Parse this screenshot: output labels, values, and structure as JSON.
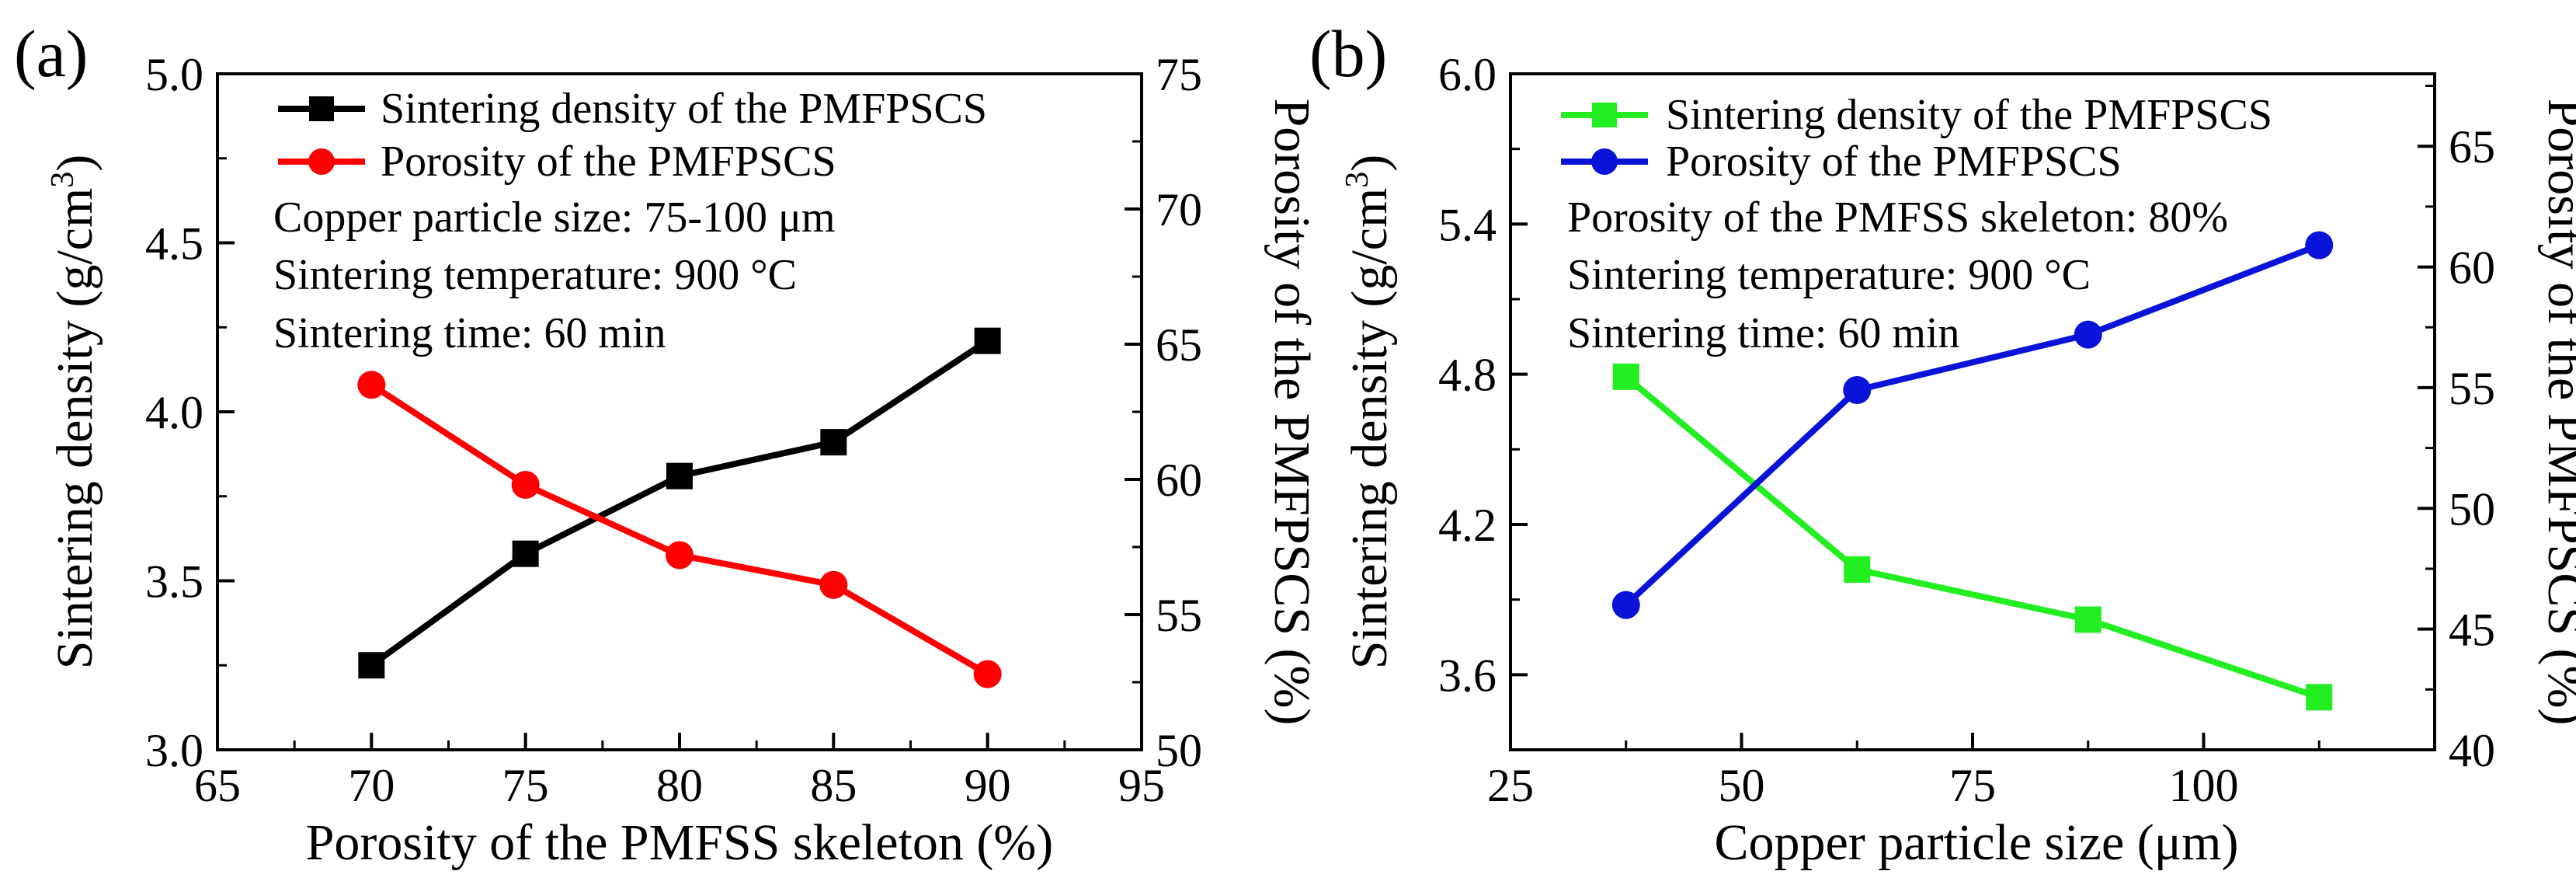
{
  "chart_data": [
    {
      "type": "line",
      "panel_label": "(a)",
      "xlabel": "Porosity of the PMFSS skeleton (%)",
      "ylabel": "Sintering density (g/cm",
      "ylabel_sup": "3",
      "ylabel_close": ")",
      "y2label": "Porosity of the PMFPSCS (%)",
      "xlim": [
        65,
        95
      ],
      "ylim": [
        3.0,
        5.0
      ],
      "y2lim": [
        50,
        75
      ],
      "xticks": [
        "65",
        "70",
        "75",
        "80",
        "85",
        "90",
        "95"
      ],
      "yticks": [
        "3.0",
        "3.5",
        "4.0",
        "4.5",
        "5.0"
      ],
      "y2ticks": [
        "50",
        "55",
        "60",
        "65",
        "70",
        "75"
      ],
      "x": [
        70,
        75,
        80,
        85,
        90
      ],
      "series": [
        {
          "name": "Sintering density of the PMFPSCS",
          "axis": "left",
          "marker": "square",
          "color": "#000000",
          "values": [
            3.25,
            3.58,
            3.81,
            3.91,
            4.21
          ]
        },
        {
          "name": "Porosity of the PMFPSCS",
          "axis": "right",
          "marker": "circle",
          "color": "#ff0000",
          "values": [
            63.5,
            59.8,
            57.2,
            56.1,
            52.8
          ]
        }
      ],
      "annotations": [
        "Copper particle size: 75-100 μm",
        "Sintering temperature: 900 °C",
        "Sintering time: 60 min"
      ]
    },
    {
      "type": "line",
      "panel_label": "(b)",
      "xlabel": "Copper particle size (μm)",
      "ylabel": "Sintering density (g/cm",
      "ylabel_sup": "3",
      "ylabel_close": ")",
      "y2label": "Porosity of the PMFPSCS (%)",
      "xlim": [
        25,
        125
      ],
      "ylim": [
        3.3,
        6.0
      ],
      "y2lim": [
        40,
        68
      ],
      "xticks": [
        "25",
        "50",
        "75",
        "100"
      ],
      "xtick_values": [
        25,
        50,
        75,
        100
      ],
      "yticks": [
        "3.6",
        "4.2",
        "4.8",
        "5.4",
        "6.0"
      ],
      "ytick_values": [
        3.6,
        4.2,
        4.8,
        5.4,
        6.0
      ],
      "y2ticks": [
        "40",
        "45",
        "50",
        "55",
        "60",
        "65"
      ],
      "y2tick_values": [
        40,
        45,
        50,
        55,
        60,
        65
      ],
      "x": [
        37.5,
        62.5,
        87.5,
        112.5
      ],
      "series": [
        {
          "name": "Sintering density of the PMFPSCS",
          "axis": "left",
          "marker": "square",
          "color": "#22ee22",
          "values": [
            4.79,
            4.02,
            3.82,
            3.51
          ]
        },
        {
          "name": "Porosity of the PMFPSCS",
          "axis": "right",
          "marker": "circle",
          "color": "#0a14d8",
          "values": [
            46.0,
            54.9,
            57.2,
            60.9
          ]
        }
      ],
      "annotations": [
        "Porosity of the PMFSS skeleton: 80%",
        "Sintering temperature: 900 °C",
        "Sintering time: 60 min"
      ]
    }
  ]
}
